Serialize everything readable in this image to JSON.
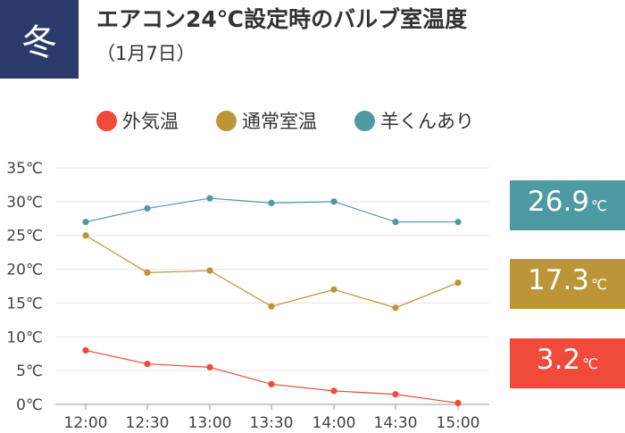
{
  "badge": {
    "label": "冬"
  },
  "header": {
    "title": "エアコン24℃設定時のバルブ室温度",
    "subtitle": "（1月7日）"
  },
  "colors": {
    "outdoor": "#f04a3a",
    "room": "#bb9538",
    "sheep": "#4e9aa2",
    "badge_bg": "#2b3a6b"
  },
  "current_values": [
    {
      "series": "羊くんあり",
      "value": "26.9",
      "unit": "℃",
      "color": "#4e9aa2"
    },
    {
      "series": "通常室温",
      "value": "17.3",
      "unit": "℃",
      "color": "#bb9538"
    },
    {
      "series": "外気温",
      "value": "3.2",
      "unit": "℃",
      "color": "#f04a3a"
    }
  ],
  "chart_data": {
    "type": "line",
    "x": [
      "12:00",
      "12:30",
      "13:00",
      "13:30",
      "14:00",
      "14:30",
      "15:00"
    ],
    "ylim": [
      0,
      35
    ],
    "yticks": [
      "0℃",
      "5℃",
      "10℃",
      "15℃",
      "20℃",
      "25℃",
      "30℃",
      "35℃"
    ],
    "grid": true,
    "legend": "top",
    "series": [
      {
        "name": "外気温",
        "color": "#f04a3a",
        "values": [
          8.0,
          6.0,
          5.5,
          3.0,
          2.0,
          1.5,
          0.2
        ]
      },
      {
        "name": "通常室温",
        "color": "#bb9538",
        "values": [
          25.0,
          19.5,
          19.8,
          14.5,
          17.0,
          14.3,
          18.0
        ]
      },
      {
        "name": "羊くんあり",
        "color": "#4e9aa2",
        "values": [
          27.0,
          29.0,
          30.5,
          29.8,
          30.0,
          27.0,
          27.0
        ]
      }
    ]
  }
}
